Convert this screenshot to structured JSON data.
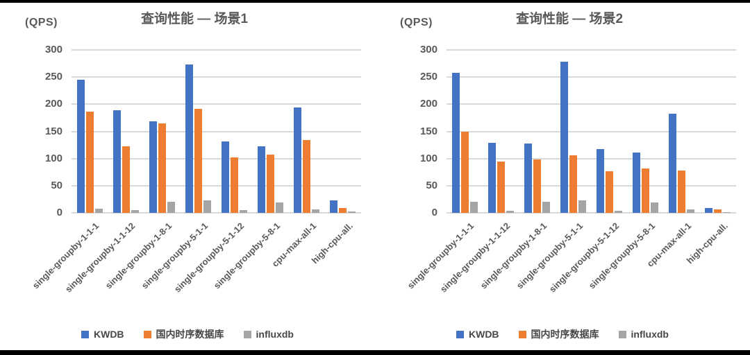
{
  "colors": {
    "kwdb_blue": "#4472C4",
    "domestic_orange": "#ED7D31",
    "influxdb_gray": "#A5A5A5",
    "text_gray": "#595959",
    "gridline_gray": "#D9D9D9"
  },
  "chart_data": [
    {
      "type": "bar",
      "title": "查询性能 — 场景1",
      "unit_label": "(QPS)",
      "ylabel": "(QPS)",
      "xlabel": "",
      "ylim": [
        0,
        300
      ],
      "yticks": [
        0,
        50,
        100,
        150,
        200,
        250,
        300
      ],
      "grid": true,
      "legend_position": "bottom",
      "categories": [
        "single-groupby-1-1-1",
        "single-groupby-1-1-12",
        "single-groupby-1-8-1",
        "single-groupby-5-1-1",
        "single-groupby-5-1-12",
        "single-groupby-5-8-1",
        "cpu-max-all-1",
        "high-cpu-all."
      ],
      "series": [
        {
          "name": "KWDB",
          "color": "#4472C4",
          "values": [
            245,
            189,
            168,
            273,
            131,
            122,
            194,
            23
          ]
        },
        {
          "name": "国内时序数据库",
          "color": "#ED7D31",
          "values": [
            186,
            122,
            165,
            191,
            102,
            107,
            134,
            9
          ]
        },
        {
          "name": "influxdb",
          "color": "#A5A5A5",
          "values": [
            8,
            5,
            20,
            23,
            5,
            19,
            7,
            2
          ]
        }
      ]
    },
    {
      "type": "bar",
      "title": "查询性能 — 场景2",
      "unit_label": "(QPS)",
      "ylabel": "(QPS)",
      "xlabel": "",
      "ylim": [
        0,
        300
      ],
      "yticks": [
        0,
        50,
        100,
        150,
        200,
        250,
        300
      ],
      "grid": true,
      "legend_position": "bottom",
      "categories": [
        "single-groupby-1-1-1",
        "single-groupby-1-1-12",
        "single-groupby-1-8-1",
        "single-groupby-5-1-1",
        "single-groupby-5-1-12",
        "single-groupby-5-8-1",
        "cpu-max-all-1",
        "high-cpu-all."
      ],
      "series": [
        {
          "name": "KWDB",
          "color": "#4472C4",
          "values": [
            258,
            129,
            128,
            278,
            117,
            111,
            183,
            9
          ]
        },
        {
          "name": "国内时序数据库",
          "color": "#ED7D31",
          "values": [
            150,
            94,
            98,
            106,
            76,
            82,
            78,
            7
          ]
        },
        {
          "name": "influxdb",
          "color": "#A5A5A5",
          "values": [
            20,
            4,
            20,
            23,
            4,
            19,
            7,
            1
          ]
        }
      ]
    }
  ]
}
